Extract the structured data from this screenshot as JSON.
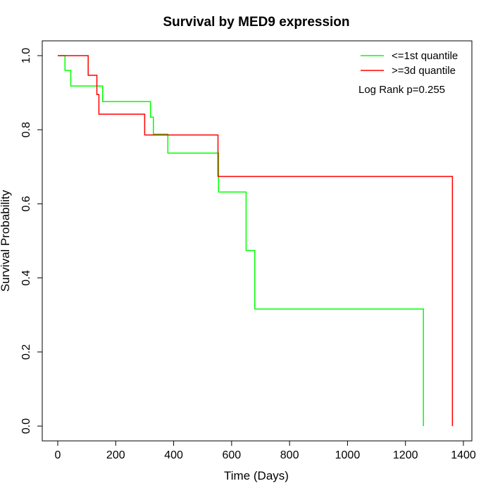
{
  "chart_data": {
    "type": "line",
    "title": "Survival by MED9 expression",
    "xlabel": "Time (Days)",
    "ylabel": "Survival Probability",
    "xlim": [
      0,
      1400
    ],
    "ylim": [
      0,
      1
    ],
    "x_ticks": [
      0,
      200,
      400,
      600,
      800,
      1000,
      1200,
      1400
    ],
    "y_ticks": [
      0.0,
      0.2,
      0.4,
      0.6,
      0.8,
      1.0
    ],
    "x_tick_labels": [
      "0",
      "200",
      "400",
      "600",
      "800",
      "1000",
      "1200",
      "1400"
    ],
    "y_tick_labels": [
      "0.0",
      "0.2",
      "0.4",
      "0.6",
      "0.8",
      "1.0"
    ],
    "grid": false,
    "legend_position": "top-right",
    "annotation": "Log Rank p=0.255",
    "series": [
      {
        "name": "<=1st quantile",
        "color": "#00ff00",
        "step": true,
        "x": [
          0,
          25,
          45,
          155,
          320,
          330,
          380,
          555,
          650,
          680,
          1262,
          1262
        ],
        "y": [
          1.0,
          0.96,
          0.918,
          0.876,
          0.834,
          0.788,
          0.737,
          0.632,
          0.474,
          0.316,
          0.316,
          0.0
        ]
      },
      {
        "name": ">=3d quantile",
        "color": "#ff0000",
        "step": true,
        "x": [
          0,
          105,
          135,
          142,
          300,
          330,
          553,
          1362,
          1362
        ],
        "y": [
          1.0,
          0.947,
          0.895,
          0.842,
          0.786,
          0.786,
          0.674,
          0.674,
          0.0
        ]
      }
    ]
  }
}
